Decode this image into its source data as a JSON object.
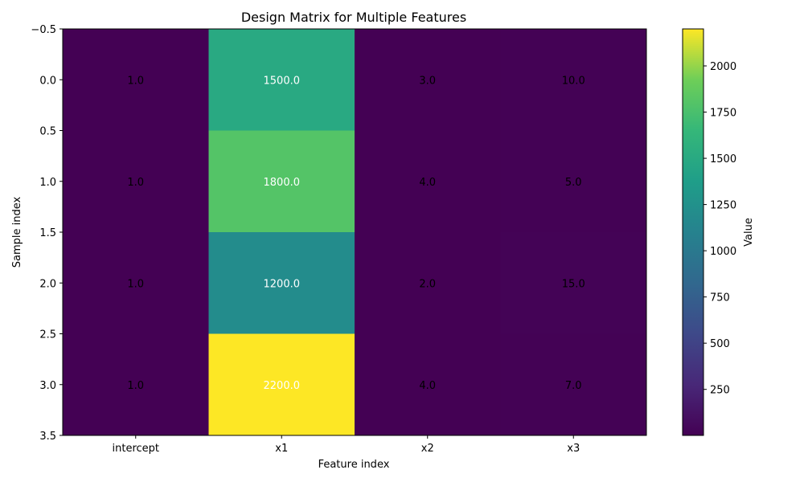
{
  "chart_data": {
    "type": "heatmap",
    "title": "Design Matrix for Multiple Features",
    "xlabel": "Feature index",
    "ylabel": "Sample index",
    "x_categories": [
      "intercept",
      "x1",
      "x2",
      "x3"
    ],
    "y_ticks": [
      "−0.5",
      "0.0",
      "0.5",
      "1.0",
      "1.5",
      "2.0",
      "2.5",
      "3.0",
      "3.5"
    ],
    "ylim": [
      3.5,
      -0.5
    ],
    "values": [
      [
        1.0,
        1500.0,
        3.0,
        10.0
      ],
      [
        1.0,
        1800.0,
        4.0,
        5.0
      ],
      [
        1.0,
        1200.0,
        2.0,
        15.0
      ],
      [
        1.0,
        2200.0,
        4.0,
        7.0
      ]
    ],
    "cell_labels": [
      [
        "1.0",
        "1500.0",
        "3.0",
        "10.0"
      ],
      [
        "1.0",
        "1800.0",
        "4.0",
        "5.0"
      ],
      [
        "1.0",
        "1200.0",
        "2.0",
        "15.0"
      ],
      [
        "1.0",
        "2200.0",
        "4.0",
        "7.0"
      ]
    ],
    "colormap": "viridis",
    "color_range": [
      1.0,
      2200.0
    ],
    "colorbar": {
      "label": "Value",
      "ticks": [
        250,
        500,
        750,
        1000,
        1250,
        1500,
        1750,
        2000
      ],
      "tick_labels": [
        "250",
        "500",
        "750",
        "1000",
        "1250",
        "1500",
        "1750",
        "2000"
      ]
    },
    "text_color_light": "#ffffff",
    "text_color_dark": "#000000",
    "grid": false
  }
}
